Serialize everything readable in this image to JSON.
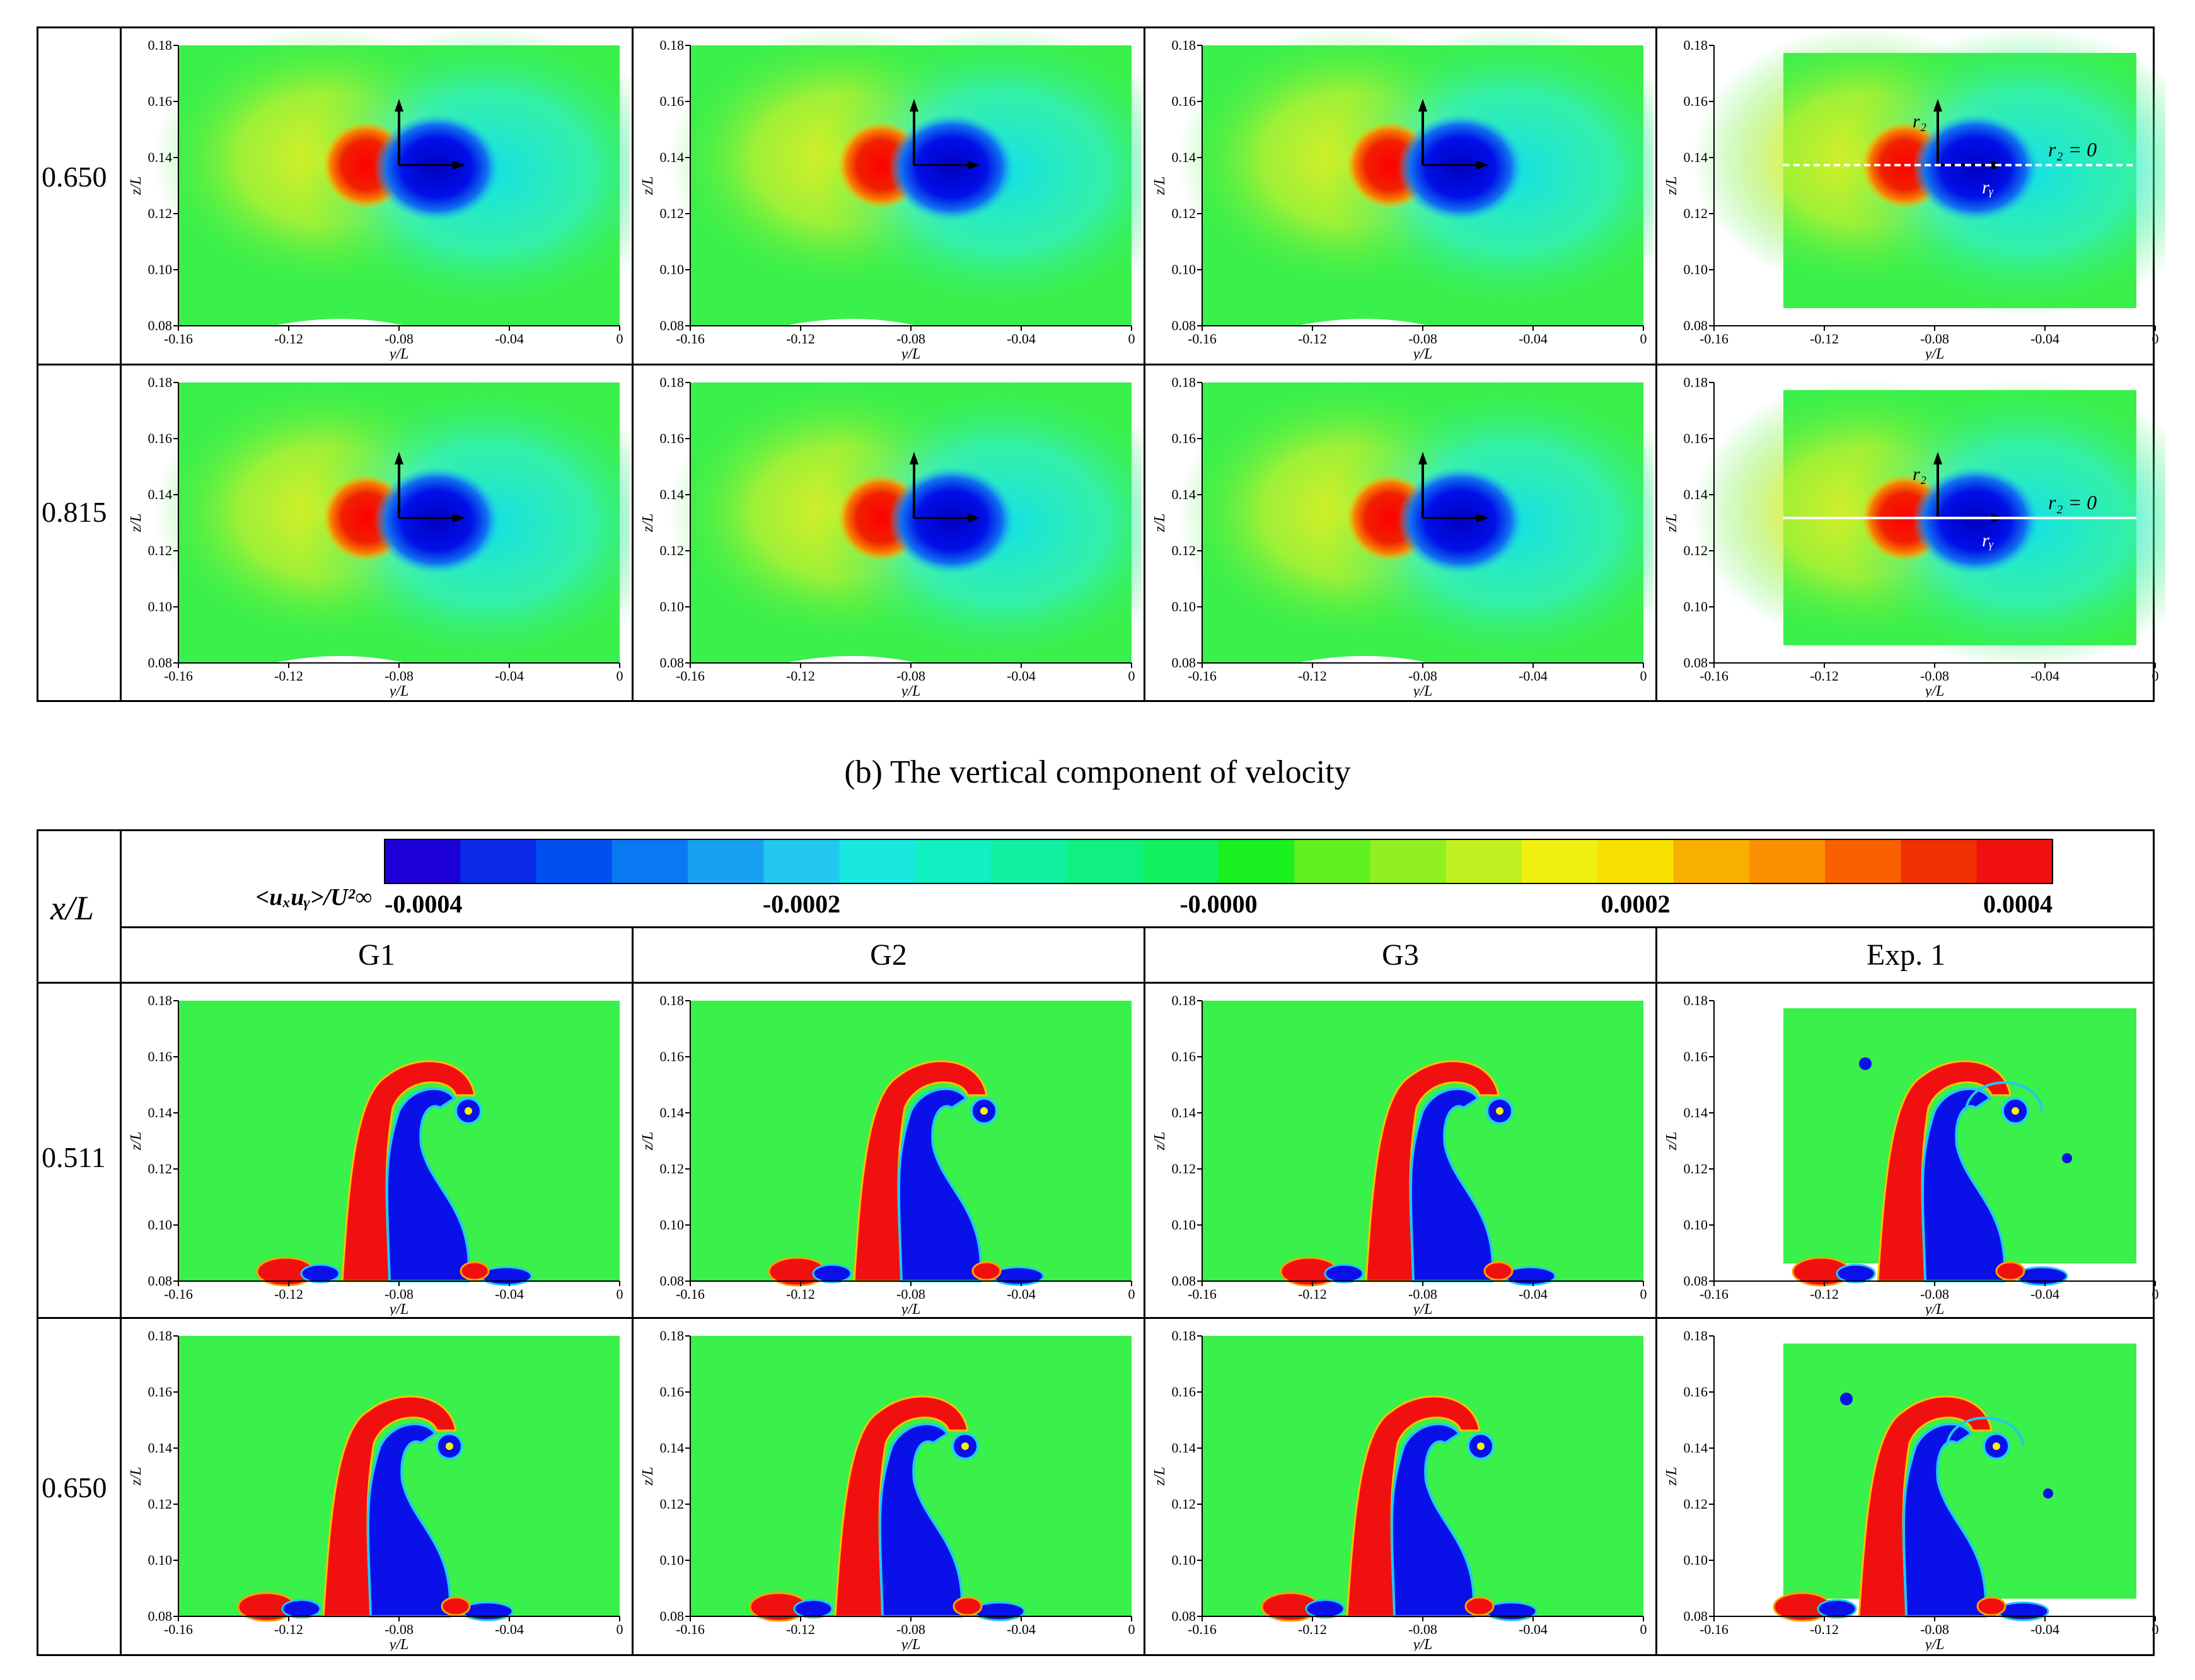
{
  "top_table": {
    "rows": [
      {
        "label": "0.650"
      },
      {
        "label": "0.815"
      }
    ]
  },
  "caption_b": "(b)   The vertical component of velocity",
  "bottom_table": {
    "header_label": "x/L",
    "colorbar": {
      "label": "<uₓuᵧ>/U²∞",
      "ticks": [
        "-0.0004",
        "-0.0002",
        "-0.0000",
        "0.0002",
        "0.0004"
      ],
      "colors": [
        "#1d00d6",
        "#0a2ae8",
        "#0050f0",
        "#0a78f0",
        "#1aa0f0",
        "#22c8f0",
        "#18e8e0",
        "#10f0c0",
        "#10f0a0",
        "#10f080",
        "#10f060",
        "#18f020",
        "#60f020",
        "#90f020",
        "#c0f020",
        "#f0f010",
        "#f8e000",
        "#f8b000",
        "#f89000",
        "#f86000",
        "#f03000",
        "#f01010"
      ]
    },
    "columns": [
      "G1",
      "G2",
      "G3",
      "Exp. 1"
    ],
    "rows": [
      {
        "label": "0.511"
      },
      {
        "label": "0.650"
      }
    ]
  },
  "axes": {
    "xlabel": "y/L",
    "ylabel": "z/L",
    "xticks": [
      "-0.16",
      "-0.12",
      "-0.08",
      "-0.04",
      "0"
    ],
    "yticks": [
      "0.08",
      "0.10",
      "0.12",
      "0.14",
      "0.16",
      "0.18"
    ]
  },
  "annotations": {
    "rz": "r₂",
    "ry": "rᵧ",
    "rz_zero": "r₂ = 0"
  },
  "colors": {
    "field_bg": "#3af04a",
    "positive": "#f01010",
    "negative": "#0a10e8"
  }
}
